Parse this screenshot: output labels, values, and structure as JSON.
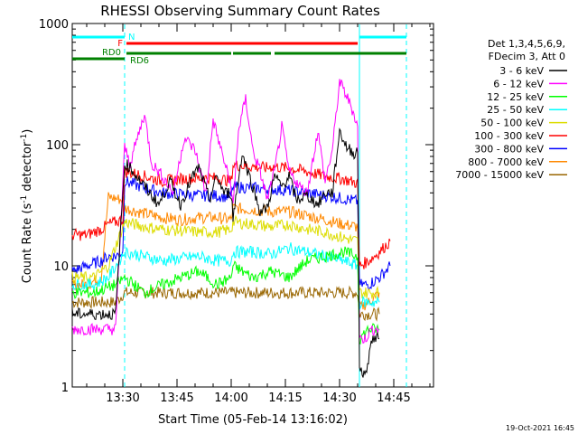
{
  "chart_data": {
    "type": "line",
    "title": "RHESSI Observing Summary Count Rates",
    "xlabel": "Start Time (05-Feb-14 13:16:02)",
    "ylabel_main": "Count Rate (s",
    "ylabel_sup": "-1",
    "ylabel_mid": " detector",
    "ylabel_sup2": "-1",
    "ylabel_end": ")",
    "x_unit": "minutes after 13:16:02 UT",
    "xlim": [
      0,
      100
    ],
    "ylim": [
      1,
      1000
    ],
    "y_scale": "log",
    "x_ticks": [
      {
        "label": "13:30",
        "value": 14
      },
      {
        "label": "13:45",
        "value": 29
      },
      {
        "label": "14:00",
        "value": 44
      },
      {
        "label": "14:15",
        "value": 59
      },
      {
        "label": "14:30",
        "value": 74
      },
      {
        "label": "14:45",
        "value": 89
      }
    ],
    "y_ticks": [
      {
        "label": "1",
        "value": 1
      },
      {
        "label": "10",
        "value": 10
      },
      {
        "label": "100",
        "value": 100
      },
      {
        "label": "1000",
        "value": 1000
      }
    ],
    "legend_header": [
      "Det 1,3,4,5,6,9,",
      "FDecim 3, Att 0"
    ],
    "series": [
      {
        "name": "3 - 6 keV",
        "color": "#000000",
        "x": [
          0,
          6,
          12,
          14.5,
          16,
          20,
          24,
          27,
          30,
          33,
          35,
          38,
          40,
          42,
          44,
          44.5,
          47,
          50,
          52,
          54,
          56,
          58,
          60,
          62,
          65,
          68,
          70,
          72,
          74,
          76,
          78,
          79,
          79.5,
          81,
          83,
          85
        ],
        "y": [
          4,
          4,
          4,
          70,
          65,
          45,
          32,
          50,
          32,
          52,
          65,
          35,
          55,
          40,
          40,
          25,
          85,
          45,
          28,
          30,
          55,
          45,
          55,
          35,
          38,
          32,
          40,
          40,
          130,
          95,
          85,
          90,
          1.5,
          1.2,
          2.5,
          2.5
        ]
      },
      {
        "name": "6 - 12 keV",
        "color": "#ff00ff",
        "x": [
          0,
          6,
          12,
          14.5,
          16,
          20,
          22,
          25,
          28,
          31,
          34,
          37,
          39,
          41,
          44,
          44.5,
          46,
          48,
          50,
          52,
          54,
          56,
          58,
          60,
          63,
          65,
          68,
          70,
          72,
          74,
          76,
          78,
          79,
          79.5,
          81,
          83,
          85
        ],
        "y": [
          3,
          3,
          3,
          95,
          70,
          180,
          70,
          55,
          40,
          115,
          90,
          40,
          160,
          95,
          45,
          30,
          130,
          240,
          90,
          60,
          35,
          60,
          140,
          60,
          45,
          40,
          130,
          50,
          90,
          330,
          250,
          180,
          140,
          2.5,
          2.5,
          3,
          3
        ]
      },
      {
        "name": "12 - 25 keV",
        "color": "#00ff00",
        "x": [
          0,
          6,
          12,
          14.5,
          20,
          25,
          30,
          35,
          40,
          44,
          44.5,
          50,
          55,
          60,
          65,
          70,
          75,
          79,
          79.5,
          82,
          85
        ],
        "y": [
          6,
          6,
          7,
          8,
          6,
          7,
          8,
          9,
          7,
          8,
          10,
          8,
          9,
          8,
          11,
          12,
          13,
          12,
          2.5,
          3,
          3
        ]
      },
      {
        "name": "25 - 50 keV",
        "color": "#00ffff",
        "x": [
          0,
          6,
          10,
          14.5,
          20,
          25,
          30,
          35,
          40,
          44,
          44.5,
          50,
          55,
          60,
          65,
          70,
          75,
          79,
          79.5,
          82,
          85
        ],
        "y": [
          7,
          7,
          8,
          13,
          12,
          11,
          11.5,
          12,
          11,
          11,
          13,
          13,
          12.5,
          14,
          13,
          12,
          11,
          10,
          5,
          5,
          5
        ]
      },
      {
        "name": "50 - 100 keV",
        "color": "#dddd00",
        "x": [
          0,
          6,
          10,
          14.5,
          20,
          25,
          30,
          35,
          40,
          44,
          44.5,
          50,
          55,
          60,
          65,
          70,
          75,
          79,
          79.5,
          82,
          85
        ],
        "y": [
          8,
          8,
          10,
          23,
          21,
          20,
          19.5,
          19,
          19,
          20,
          23,
          22,
          21,
          22,
          20,
          19,
          17,
          16,
          6,
          6,
          6
        ]
      },
      {
        "name": "100 - 300 keV",
        "color": "#ff0000",
        "x": [
          0,
          4,
          8,
          10,
          12,
          14,
          14.5,
          20,
          25,
          30,
          35,
          40,
          44,
          44.5,
          50,
          54,
          55,
          60,
          65,
          70,
          75,
          79,
          79.5,
          82,
          85,
          88
        ],
        "y": [
          18,
          18,
          20,
          22,
          23,
          24,
          60,
          55,
          50,
          52,
          53,
          53,
          50,
          68,
          66,
          64,
          66,
          64,
          60,
          55,
          52,
          48,
          10,
          11,
          13,
          16
        ]
      },
      {
        "name": "300 - 800 keV",
        "color": "#0000ff",
        "x": [
          0,
          4,
          8,
          10,
          12,
          14,
          14.5,
          20,
          25,
          30,
          35,
          40,
          44,
          44.5,
          50,
          55,
          60,
          65,
          70,
          75,
          79,
          79.5,
          82,
          85,
          88
        ],
        "y": [
          9,
          10,
          11,
          12,
          12,
          13,
          50,
          44,
          40,
          39,
          38,
          38,
          37,
          45,
          44,
          43,
          42,
          40,
          38,
          36,
          34,
          7,
          7,
          8,
          10
        ]
      },
      {
        "name": "800 - 7000 keV",
        "color": "#ff8800",
        "x": [
          0,
          4,
          8,
          10,
          12,
          14,
          14.5,
          20,
          25,
          30,
          35,
          40,
          44,
          44.5,
          50,
          55,
          60,
          65,
          70,
          75,
          79,
          79.5,
          82,
          85
        ],
        "y": [
          7,
          7,
          8,
          37,
          36,
          35,
          30,
          27,
          25,
          24,
          25,
          25,
          24,
          30,
          29,
          28,
          28,
          26,
          24,
          22,
          21,
          4.5,
          5,
          6
        ]
      },
      {
        "name": "7000 - 15000 keV",
        "color": "#996600",
        "x": [
          0,
          6,
          12,
          14.5,
          20,
          30,
          40,
          44,
          50,
          60,
          70,
          79,
          79.5,
          85
        ],
        "y": [
          5,
          5,
          5,
          6,
          6,
          6,
          6,
          6,
          6,
          6,
          6,
          6,
          4,
          4
        ]
      }
    ],
    "attenuator_bars": [
      {
        "label": "N",
        "color": "#00ffff",
        "segments": [
          [
            0,
            14.5
          ],
          [
            79.5,
            92.5
          ]
        ]
      },
      {
        "label": "F",
        "color": "#ff0000",
        "segments": [
          [
            15,
            79
          ]
        ]
      },
      {
        "label": "RD0",
        "color": "#008000",
        "segments": [
          [
            0,
            14.5
          ]
        ]
      },
      {
        "label": "RD6",
        "color": "#008000",
        "segments": [
          [
            15,
            44
          ],
          [
            44.5,
            55
          ],
          [
            56,
            92.5
          ]
        ]
      }
    ],
    "vertical_lines": [
      {
        "x": 14.5,
        "color": "#00ffff",
        "style": "dashed"
      },
      {
        "x": 79.5,
        "color": "#00ffff",
        "style": "solid"
      },
      {
        "x": 92.5,
        "color": "#00ffff",
        "style": "dashed"
      }
    ],
    "timestamp": "19-Oct-2021 16:45"
  }
}
